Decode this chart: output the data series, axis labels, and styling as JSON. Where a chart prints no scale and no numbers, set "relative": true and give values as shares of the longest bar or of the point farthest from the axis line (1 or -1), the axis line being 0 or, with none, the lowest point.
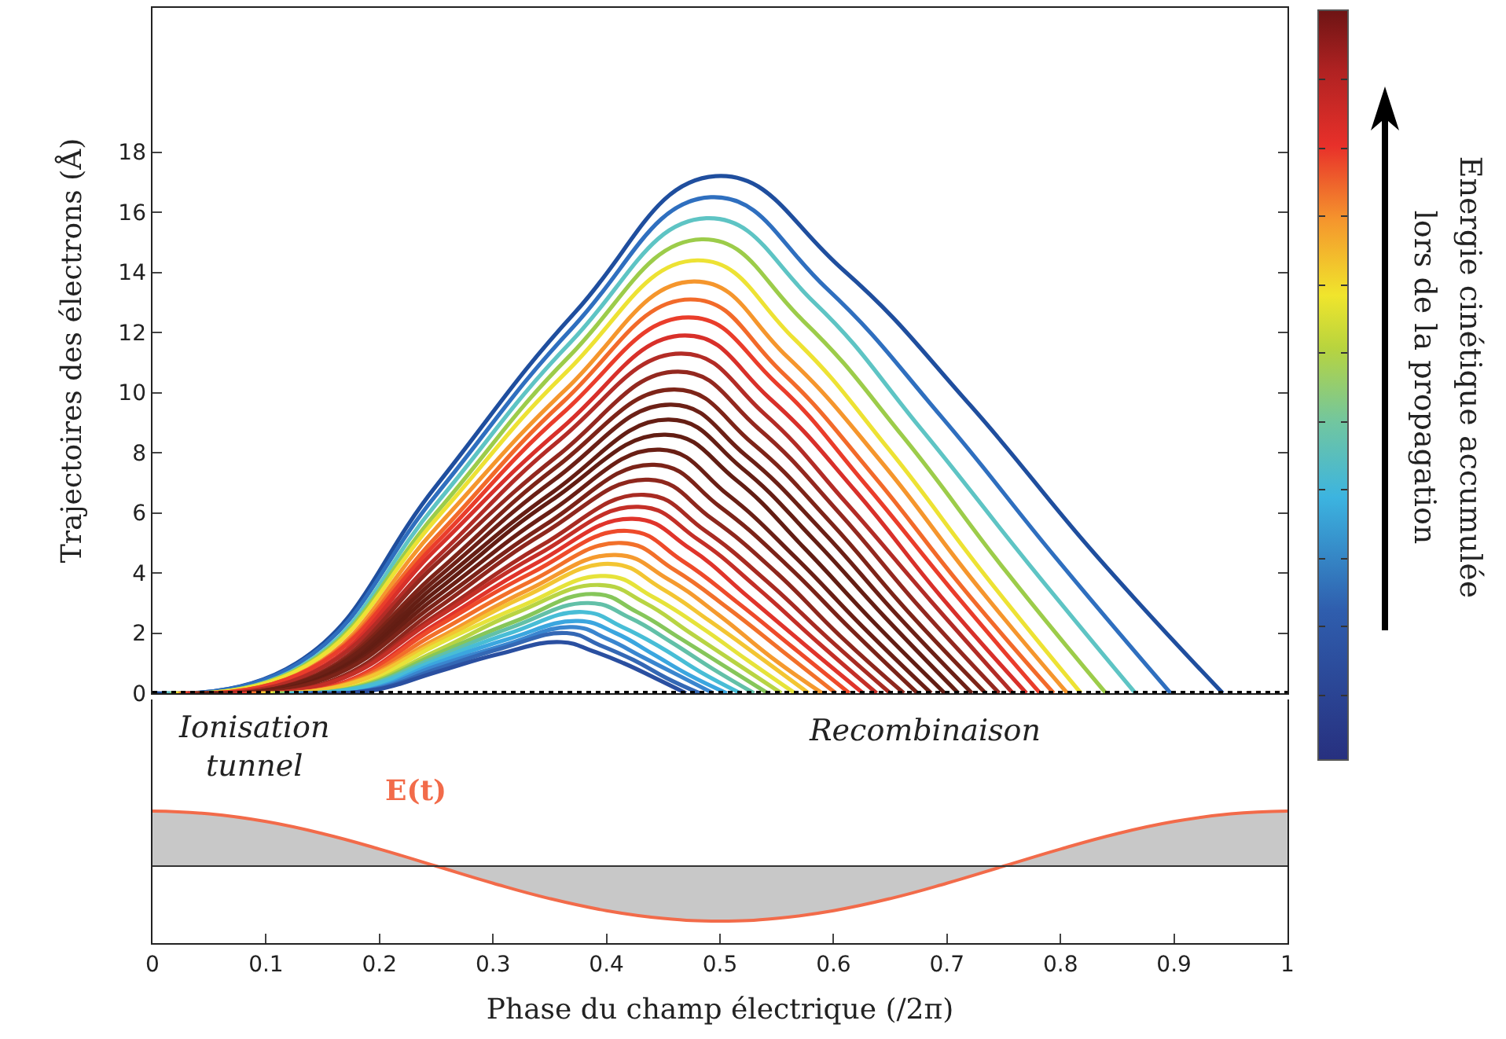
{
  "chart_data": [
    {
      "type": "line",
      "ylabel": "Trajectoires des électrons (Å)",
      "xlim": [
        0,
        1
      ],
      "ylim": [
        0,
        22.8
      ],
      "yticks": [
        0,
        2,
        4,
        6,
        8,
        10,
        12,
        14,
        16,
        18
      ],
      "tick_labels": "y",
      "clabel": "Energie cinétique accumulée\nlors de la propagation",
      "ref_lines": [
        {
          "axis": "y",
          "value": 0,
          "color": "#000000",
          "line_style": "dotted"
        }
      ],
      "series": [
        {
          "color": "#1f4e9e",
          "x": [
            0.004,
            0.127,
            0.25,
            0.373,
            0.496,
            0.608,
            0.72,
            0.831,
            0.943
          ],
          "values": [
            0,
            1.0,
            6.9,
            12.7,
            17.2,
            14.1,
            9.6,
            4.6,
            0
          ]
        },
        {
          "color": "#2f6fbf",
          "x": [
            0.008,
            0.129,
            0.25,
            0.371,
            0.492,
            0.593,
            0.695,
            0.796,
            0.897
          ],
          "values": [
            0,
            1.0,
            6.6,
            12.2,
            16.5,
            13.5,
            9.2,
            4.5,
            0
          ]
        },
        {
          "color": "#5ec4c4",
          "x": [
            0.012,
            0.131,
            0.25,
            0.369,
            0.488,
            0.583,
            0.677,
            0.772,
            0.866
          ],
          "values": [
            0,
            0.9,
            6.3,
            11.7,
            15.8,
            13.0,
            8.8,
            4.3,
            0
          ]
        },
        {
          "color": "#9ccc4a",
          "x": [
            0.016,
            0.133,
            0.25,
            0.367,
            0.484,
            0.573,
            0.662,
            0.751,
            0.84
          ],
          "values": [
            0,
            0.9,
            6.0,
            11.2,
            15.1,
            12.4,
            8.5,
            4.1,
            0
          ]
        },
        {
          "color": "#ede234",
          "x": [
            0.02,
            0.135,
            0.25,
            0.365,
            0.48,
            0.565,
            0.649,
            0.734,
            0.818
          ],
          "values": [
            0,
            0.9,
            5.8,
            10.7,
            14.4,
            11.8,
            8.1,
            3.9,
            0
          ]
        },
        {
          "color": "#f5962d",
          "x": [
            0.023,
            0.137,
            0.25,
            0.364,
            0.477,
            0.559,
            0.642,
            0.724,
            0.806
          ],
          "values": [
            0,
            0.8,
            5.5,
            10.1,
            13.7,
            11.2,
            7.7,
            3.7,
            0
          ]
        },
        {
          "color": "#f26a2a",
          "x": [
            0.026,
            0.138,
            0.25,
            0.362,
            0.474,
            0.554,
            0.634,
            0.714,
            0.794
          ],
          "values": [
            0,
            0.8,
            5.2,
            9.7,
            13.1,
            10.7,
            7.3,
            3.5,
            0
          ]
        },
        {
          "color": "#ea3d2b",
          "x": [
            0.028,
            0.139,
            0.25,
            0.361,
            0.472,
            0.55,
            0.627,
            0.705,
            0.782
          ],
          "values": [
            0,
            0.8,
            5.0,
            9.3,
            12.5,
            10.3,
            7.0,
            3.4,
            0
          ]
        },
        {
          "color": "#d8302a",
          "x": [
            0.031,
            0.141,
            0.25,
            0.36,
            0.469,
            0.544,
            0.62,
            0.695,
            0.77
          ],
          "values": [
            0,
            0.7,
            4.8,
            8.8,
            11.9,
            9.8,
            6.7,
            3.2,
            0
          ]
        },
        {
          "color": "#b32c26",
          "x": [
            0.034,
            0.142,
            0.25,
            0.358,
            0.466,
            0.539,
            0.612,
            0.685,
            0.758
          ],
          "values": [
            0,
            0.7,
            4.5,
            8.4,
            11.3,
            9.3,
            6.3,
            3.1,
            0
          ]
        },
        {
          "color": "#93281f",
          "x": [
            0.037,
            0.144,
            0.25,
            0.357,
            0.463,
            0.534,
            0.605,
            0.675,
            0.746
          ],
          "values": [
            0,
            0.6,
            4.3,
            7.9,
            10.7,
            8.8,
            6.0,
            2.9,
            0
          ]
        },
        {
          "color": "#7d2418",
          "x": [
            0.04,
            0.145,
            0.25,
            0.355,
            0.46,
            0.529,
            0.597,
            0.666,
            0.734
          ],
          "values": [
            0,
            0.6,
            4.0,
            7.5,
            10.1,
            8.3,
            5.7,
            2.7,
            0
          ]
        },
        {
          "color": "#6c2016",
          "x": [
            0.043,
            0.147,
            0.25,
            0.354,
            0.457,
            0.523,
            0.59,
            0.656,
            0.722
          ],
          "values": [
            0,
            0.6,
            3.8,
            7.1,
            9.6,
            7.9,
            5.4,
            2.6,
            0
          ]
        },
        {
          "color": "#651e14",
          "x": [
            0.045,
            0.148,
            0.25,
            0.353,
            0.455,
            0.519,
            0.583,
            0.646,
            0.71
          ],
          "values": [
            0,
            0.5,
            3.6,
            6.7,
            9.1,
            7.5,
            5.1,
            2.5,
            0
          ]
        },
        {
          "color": "#621d13",
          "x": [
            0.048,
            0.149,
            0.25,
            0.351,
            0.452,
            0.514,
            0.575,
            0.637,
            0.698
          ],
          "values": [
            0,
            0.5,
            3.4,
            6.4,
            8.6,
            7.1,
            4.8,
            2.3,
            0
          ]
        },
        {
          "color": "#6a1f15",
          "x": [
            0.053,
            0.152,
            0.25,
            0.349,
            0.447,
            0.507,
            0.567,
            0.626,
            0.686
          ],
          "values": [
            0,
            0.5,
            3.2,
            6.0,
            8.1,
            6.6,
            4.5,
            2.2,
            0
          ]
        },
        {
          "color": "#7b2318",
          "x": [
            0.058,
            0.154,
            0.25,
            0.346,
            0.442,
            0.5,
            0.558,
            0.616,
            0.674
          ],
          "values": [
            0,
            0.5,
            3.0,
            5.6,
            7.6,
            6.2,
            4.3,
            2.1,
            0
          ]
        },
        {
          "color": "#8e271d",
          "x": [
            0.063,
            0.157,
            0.25,
            0.344,
            0.437,
            0.493,
            0.55,
            0.606,
            0.662
          ],
          "values": [
            0,
            0.4,
            2.8,
            5.3,
            7.1,
            5.8,
            4.0,
            1.9,
            0
          ]
        },
        {
          "color": "#a82b22",
          "x": [
            0.067,
            0.159,
            0.25,
            0.342,
            0.433,
            0.487,
            0.542,
            0.596,
            0.65
          ],
          "values": [
            0,
            0.4,
            2.6,
            4.9,
            6.6,
            5.4,
            3.7,
            1.8,
            0
          ]
        },
        {
          "color": "#c42f27",
          "x": [
            0.072,
            0.161,
            0.25,
            0.339,
            0.428,
            0.481,
            0.533,
            0.586,
            0.638
          ],
          "values": [
            0,
            0.4,
            2.5,
            4.6,
            6.2,
            5.1,
            3.5,
            1.7,
            0
          ]
        },
        {
          "color": "#e0342b",
          "x": [
            0.077,
            0.164,
            0.25,
            0.337,
            0.423,
            0.474,
            0.525,
            0.575,
            0.626
          ],
          "values": [
            0,
            0.3,
            2.3,
            4.3,
            5.8,
            4.8,
            3.2,
            1.6,
            0
          ]
        },
        {
          "color": "#ee4a2a",
          "x": [
            0.082,
            0.166,
            0.25,
            0.334,
            0.418,
            0.467,
            0.516,
            0.565,
            0.614
          ],
          "values": [
            0,
            0.3,
            2.2,
            4.0,
            5.4,
            4.4,
            3.0,
            1.5,
            0
          ]
        },
        {
          "color": "#f2702a",
          "x": [
            0.087,
            0.169,
            0.25,
            0.332,
            0.413,
            0.46,
            0.508,
            0.555,
            0.602
          ],
          "values": [
            0,
            0.3,
            2.0,
            3.7,
            5.0,
            4.1,
            2.8,
            1.4,
            0
          ]
        },
        {
          "color": "#f59a2e",
          "x": [
            0.092,
            0.171,
            0.25,
            0.329,
            0.408,
            0.454,
            0.499,
            0.545,
            0.59
          ],
          "values": [
            0,
            0.3,
            1.8,
            3.4,
            4.6,
            3.8,
            2.6,
            1.2,
            0
          ]
        },
        {
          "color": "#f3c532",
          "x": [
            0.096,
            0.173,
            0.25,
            0.327,
            0.404,
            0.448,
            0.491,
            0.535,
            0.578
          ],
          "values": [
            0,
            0.3,
            1.7,
            3.2,
            4.3,
            3.5,
            2.4,
            1.2,
            0
          ]
        },
        {
          "color": "#e6e33a",
          "x": [
            0.101,
            0.176,
            0.25,
            0.325,
            0.399,
            0.441,
            0.483,
            0.524,
            0.566
          ],
          "values": [
            0,
            0.2,
            1.6,
            2.9,
            3.9,
            3.2,
            2.2,
            1.1,
            0
          ]
        },
        {
          "color": "#b8d443",
          "x": [
            0.106,
            0.178,
            0.25,
            0.322,
            0.394,
            0.434,
            0.474,
            0.514,
            0.554
          ],
          "values": [
            0,
            0.2,
            1.4,
            2.7,
            3.6,
            3.0,
            2.0,
            1.0,
            0
          ]
        },
        {
          "color": "#86c65a",
          "x": [
            0.111,
            0.181,
            0.25,
            0.32,
            0.389,
            0.427,
            0.466,
            0.504,
            0.542
          ],
          "values": [
            0,
            0.2,
            1.3,
            2.4,
            3.3,
            2.7,
            1.8,
            0.9,
            0
          ]
        },
        {
          "color": "#62c0a8",
          "x": [
            0.116,
            0.183,
            0.25,
            0.317,
            0.384,
            0.421,
            0.457,
            0.494,
            0.53
          ],
          "values": [
            0,
            0.2,
            1.2,
            2.2,
            3.0,
            2.5,
            1.7,
            0.8,
            0
          ]
        },
        {
          "color": "#48bdd6",
          "x": [
            0.121,
            0.186,
            0.25,
            0.315,
            0.379,
            0.414,
            0.449,
            0.483,
            0.518
          ],
          "values": [
            0,
            0.2,
            1.1,
            2.0,
            2.7,
            2.2,
            1.5,
            0.7,
            0
          ]
        },
        {
          "color": "#3ba6df",
          "x": [
            0.125,
            0.188,
            0.25,
            0.313,
            0.375,
            0.408,
            0.441,
            0.473,
            0.506
          ],
          "values": [
            0,
            0.1,
            1.0,
            1.8,
            2.4,
            2.0,
            1.3,
            0.6,
            0
          ]
        },
        {
          "color": "#3a86cf",
          "x": [
            0.13,
            0.19,
            0.25,
            0.31,
            0.37,
            0.401,
            0.432,
            0.463,
            0.494
          ],
          "values": [
            0,
            0.1,
            0.9,
            1.6,
            2.2,
            1.8,
            1.2,
            0.6,
            0
          ]
        },
        {
          "color": "#3468b5",
          "x": [
            0.135,
            0.193,
            0.25,
            0.308,
            0.365,
            0.394,
            0.424,
            0.453,
            0.482
          ],
          "values": [
            0,
            0.1,
            0.8,
            1.5,
            2.0,
            1.6,
            1.1,
            0.5,
            0
          ]
        },
        {
          "color": "#2a4fa0",
          "x": [
            0.14,
            0.195,
            0.25,
            0.305,
            0.36,
            0.388,
            0.415,
            0.443,
            0.47
          ],
          "values": [
            0,
            0.1,
            0.7,
            1.3,
            1.7,
            1.4,
            1.0,
            0.5,
            0
          ]
        }
      ]
    },
    {
      "type": "area",
      "relative": true,
      "xlim": [
        0,
        1
      ],
      "xticks": [
        0,
        0.1,
        0.2,
        0.3,
        0.4,
        0.5,
        0.6,
        0.7,
        0.8,
        0.9,
        1
      ],
      "xlabel": "Phase du champ électrique (/2π)",
      "tick_labels": "x",
      "annotations": [
        "Ionisation\ntunnel",
        "Recombinaison"
      ],
      "series": [
        {
          "name": "E(t)",
          "color": "#f26b4a",
          "x": [
            0,
            0.05,
            0.1,
            0.15,
            0.2,
            0.25,
            0.3,
            0.35,
            0.4,
            0.45,
            0.5,
            0.55,
            0.6,
            0.65,
            0.7,
            0.75,
            0.8,
            0.85,
            0.9,
            0.95,
            1
          ],
          "values": [
            1,
            0.95,
            0.81,
            0.59,
            0.31,
            0,
            -0.31,
            -0.59,
            -0.81,
            -0.95,
            -1,
            -0.95,
            -0.81,
            -0.59,
            -0.31,
            0,
            0.31,
            0.59,
            0.81,
            0.95,
            1
          ]
        }
      ]
    }
  ]
}
